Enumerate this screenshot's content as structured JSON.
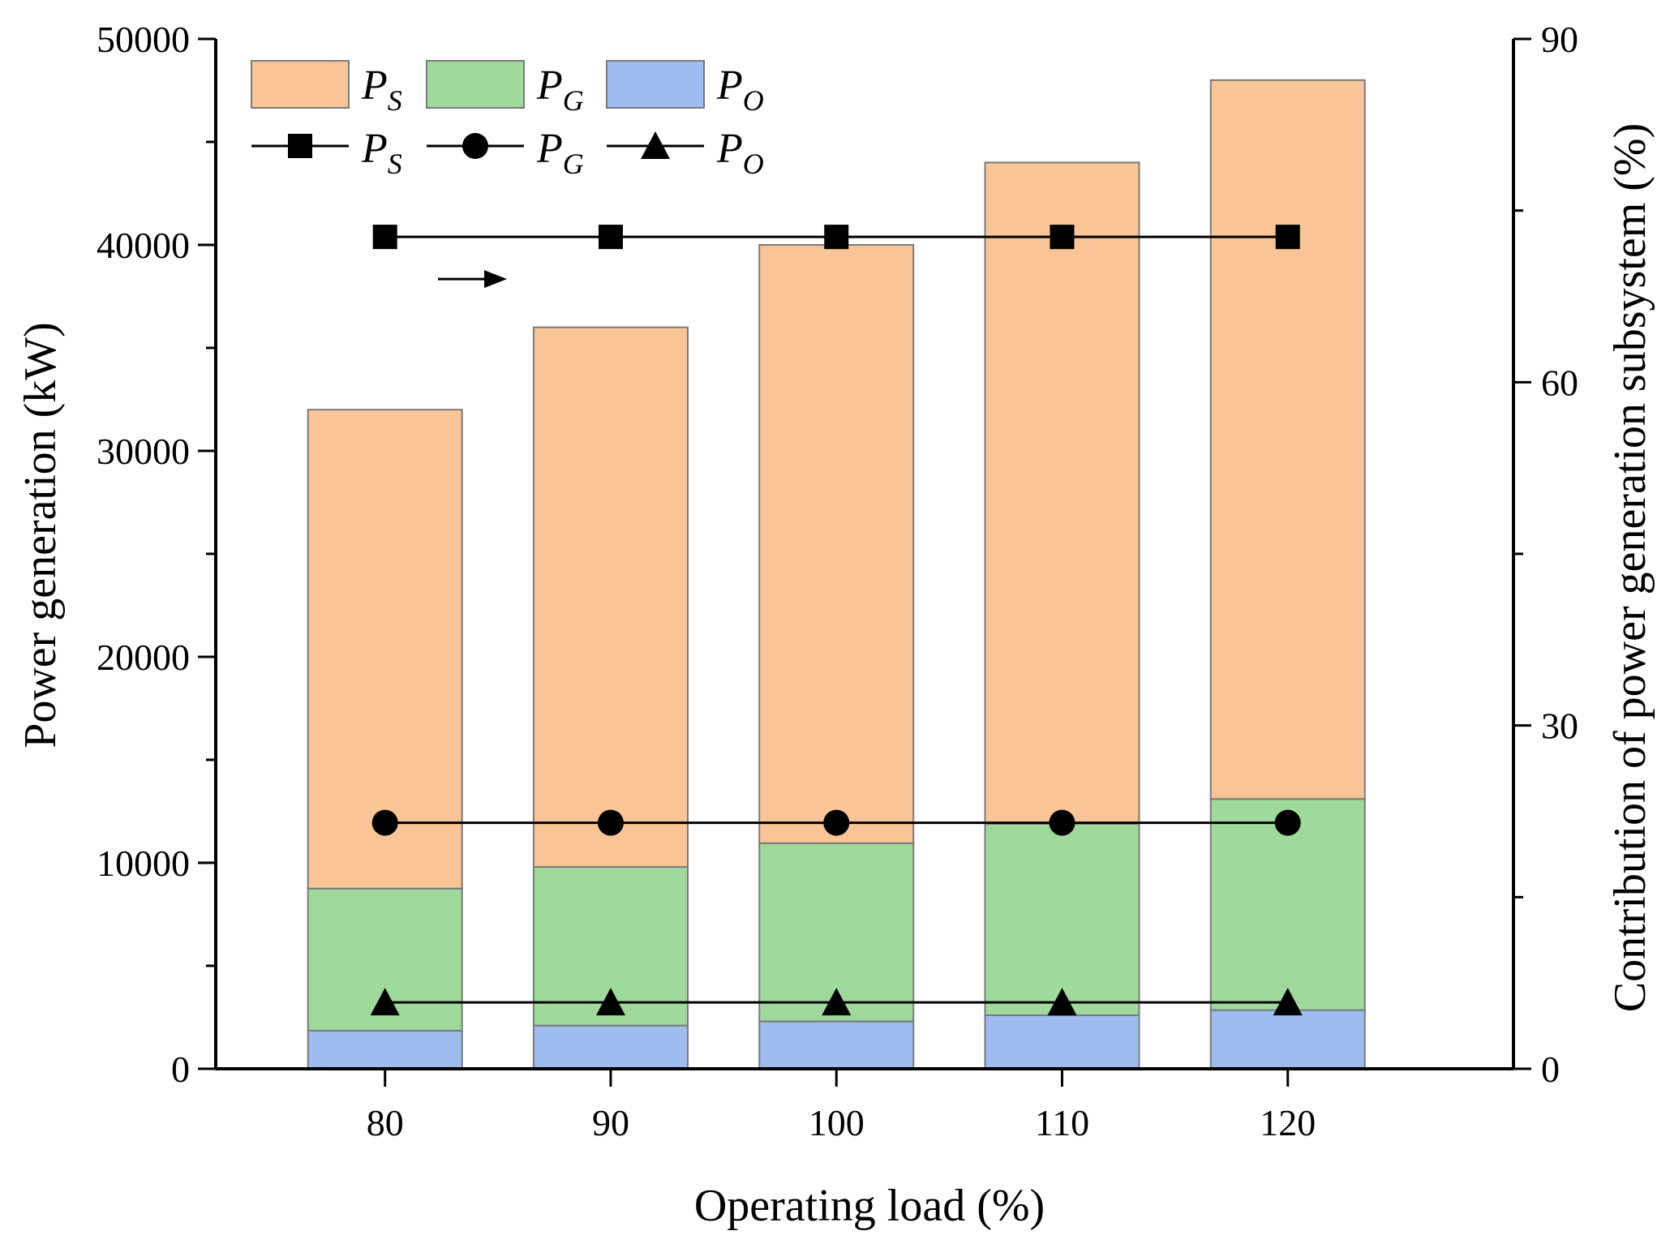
{
  "chart_data": {
    "type": "bar",
    "stacked": true,
    "categories": [
      "80",
      "90",
      "100",
      "110",
      "120"
    ],
    "xlabel": "Operating load (%)",
    "ylabel": "Power generation (kW)",
    "ylabel_right": "Contribution of power generation subsystem (%)",
    "ylim": [
      0,
      50000
    ],
    "ylim_right": [
      0,
      90
    ],
    "yticks": [
      "0",
      "10000",
      "20000",
      "30000",
      "40000",
      "50000"
    ],
    "yticks_right": [
      "0",
      "30",
      "60",
      "90"
    ],
    "series": [
      {
        "name": "P_O",
        "label_main": "P",
        "label_sub": "O",
        "color": "#9fbcf0",
        "values": [
          1850,
          2100,
          2300,
          2600,
          2850
        ]
      },
      {
        "name": "P_G",
        "label_main": "P",
        "label_sub": "G",
        "color": "#9fd99c",
        "values": [
          6900,
          7700,
          8650,
          9300,
          10250
        ]
      },
      {
        "name": "P_S",
        "label_main": "P",
        "label_sub": "S",
        "color": "#f9c496",
        "values": [
          23250,
          26200,
          29050,
          32100,
          34900
        ]
      }
    ],
    "lines": [
      {
        "name": "P_S",
        "label_main": "P",
        "label_sub": "S",
        "marker": "square",
        "axis": "right",
        "values": [
          72.7,
          72.7,
          72.7,
          72.7,
          72.7
        ]
      },
      {
        "name": "P_G",
        "label_main": "P",
        "label_sub": "G",
        "marker": "circle",
        "axis": "right",
        "values": [
          21.5,
          21.5,
          21.5,
          21.5,
          21.5
        ]
      },
      {
        "name": "P_O",
        "label_main": "P",
        "label_sub": "O",
        "marker": "triangle",
        "axis": "right",
        "values": [
          5.8,
          5.8,
          5.8,
          5.8,
          5.8
        ]
      }
    ],
    "annotation": "arrow pointing to right axis",
    "legend_placement": "top-left"
  }
}
